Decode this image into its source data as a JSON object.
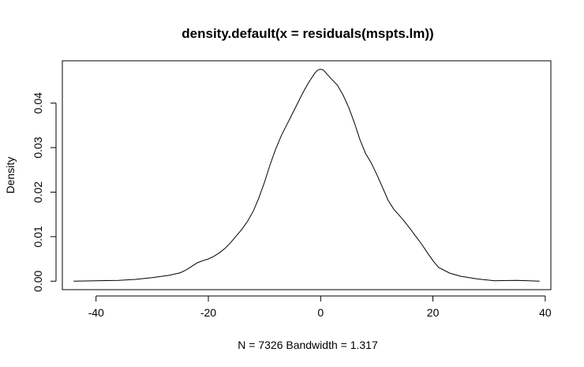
{
  "chart_data": {
    "type": "line",
    "title": "density.default(x = residuals(mspts.lm))",
    "xlabel": "N = 7326   Bandwidth = 1.317",
    "ylabel": "Density",
    "xlim": [
      -46,
      41
    ],
    "ylim": [
      -0.0019,
      0.0495
    ],
    "xticks": [
      -40,
      -20,
      0,
      20,
      40
    ],
    "yticks": [
      0.0,
      0.01,
      0.02,
      0.03,
      0.04
    ],
    "xtick_labels": [
      "-40",
      "-20",
      "0",
      "20",
      "40"
    ],
    "ytick_labels": [
      "0.00",
      "0.01",
      "0.02",
      "0.03",
      "0.04"
    ],
    "grid": false,
    "legend": "none",
    "line_color": "#000000",
    "series": [
      {
        "x": [
          -44,
          -40,
          -36,
          -33,
          -30,
          -27,
          -25,
          -24,
          -23,
          -22,
          -21,
          -20,
          -19,
          -18,
          -17,
          -16,
          -15,
          -14,
          -13,
          -12,
          -11,
          -10,
          -9,
          -8,
          -7,
          -6,
          -5,
          -4,
          -3,
          -2,
          -1,
          -0.5,
          0,
          0.5,
          1,
          2,
          3,
          4,
          5,
          6,
          7,
          8,
          9,
          10,
          11,
          12,
          13,
          14,
          15,
          16,
          17,
          18,
          19,
          20,
          21,
          23,
          25,
          28,
          31,
          35,
          39
        ],
        "y": [
          0.0,
          0.0001,
          0.0002,
          0.0004,
          0.0008,
          0.0013,
          0.0019,
          0.0025,
          0.0033,
          0.0041,
          0.0046,
          0.005,
          0.0056,
          0.0064,
          0.0074,
          0.0087,
          0.0102,
          0.0117,
          0.0135,
          0.0157,
          0.0187,
          0.0222,
          0.0262,
          0.0297,
          0.0327,
          0.0352,
          0.0377,
          0.0402,
          0.0427,
          0.0449,
          0.0468,
          0.0474,
          0.0476,
          0.0474,
          0.0467,
          0.0453,
          0.044,
          0.0418,
          0.039,
          0.0356,
          0.0318,
          0.0287,
          0.0266,
          0.024,
          0.0211,
          0.0182,
          0.0162,
          0.0148,
          0.0133,
          0.0117,
          0.01,
          0.0083,
          0.0064,
          0.0046,
          0.0031,
          0.0018,
          0.0011,
          0.0005,
          0.0001,
          0.0002,
          0.0
        ]
      }
    ]
  }
}
